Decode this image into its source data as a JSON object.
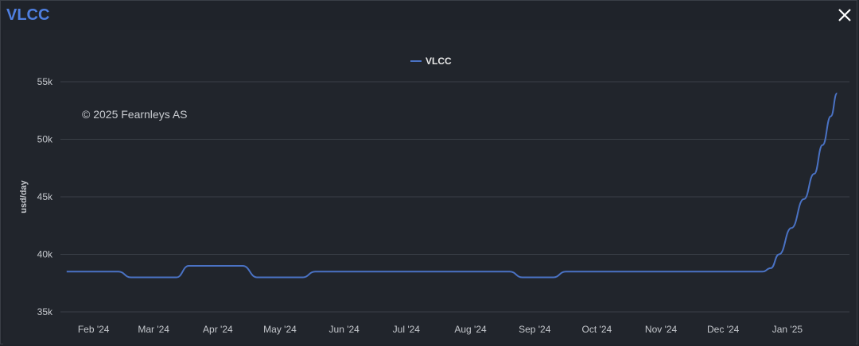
{
  "window": {
    "title": "VLCC",
    "close_icon": "close-icon"
  },
  "colors": {
    "accent": "#4f7fe0",
    "series": "#4a72c4",
    "grid": "#3a3f47",
    "background": "#1f232a"
  },
  "chart_data": {
    "type": "line",
    "title": "",
    "xlabel": "",
    "ylabel": "usd/day",
    "watermark": "© 2025 Fearnleys AS",
    "legend": {
      "position": "top-center",
      "entries": [
        "VLCC"
      ]
    },
    "grid": true,
    "ylim": [
      35000,
      55000
    ],
    "y_ticks": [
      35000,
      40000,
      45000,
      50000,
      55000
    ],
    "y_tick_labels": [
      "35k",
      "40k",
      "45k",
      "50k",
      "55k"
    ],
    "x_range": [
      "2024-01-16",
      "2025-01-31"
    ],
    "x_ticks": [
      "2024-02-01",
      "2024-03-01",
      "2024-04-01",
      "2024-05-01",
      "2024-06-01",
      "2024-07-01",
      "2024-08-01",
      "2024-09-01",
      "2024-10-01",
      "2024-11-01",
      "2024-12-01",
      "2025-01-01"
    ],
    "x_tick_labels": [
      "Feb '24",
      "Mar '24",
      "Apr '24",
      "May '24",
      "Jun '24",
      "Jul '24",
      "Aug '24",
      "Sep '24",
      "Oct '24",
      "Nov '24",
      "Dec '24",
      "Jan '25"
    ],
    "series": [
      {
        "name": "VLCC",
        "points": [
          [
            "2024-01-19",
            38500
          ],
          [
            "2024-02-13",
            38500
          ],
          [
            "2024-02-19",
            38000
          ],
          [
            "2024-03-12",
            38000
          ],
          [
            "2024-03-18",
            39000
          ],
          [
            "2024-04-13",
            39000
          ],
          [
            "2024-04-20",
            38000
          ],
          [
            "2024-05-12",
            38000
          ],
          [
            "2024-05-18",
            38500
          ],
          [
            "2024-08-20",
            38500
          ],
          [
            "2024-08-26",
            38000
          ],
          [
            "2024-09-10",
            38000
          ],
          [
            "2024-09-16",
            38500
          ],
          [
            "2024-12-20",
            38500
          ],
          [
            "2024-12-24",
            38800
          ],
          [
            "2024-12-28",
            40000
          ],
          [
            "2025-01-03",
            42300
          ],
          [
            "2025-01-09",
            44800
          ],
          [
            "2025-01-14",
            47000
          ],
          [
            "2025-01-18",
            49500
          ],
          [
            "2025-01-22",
            52000
          ],
          [
            "2025-01-25",
            54000
          ]
        ]
      }
    ]
  }
}
